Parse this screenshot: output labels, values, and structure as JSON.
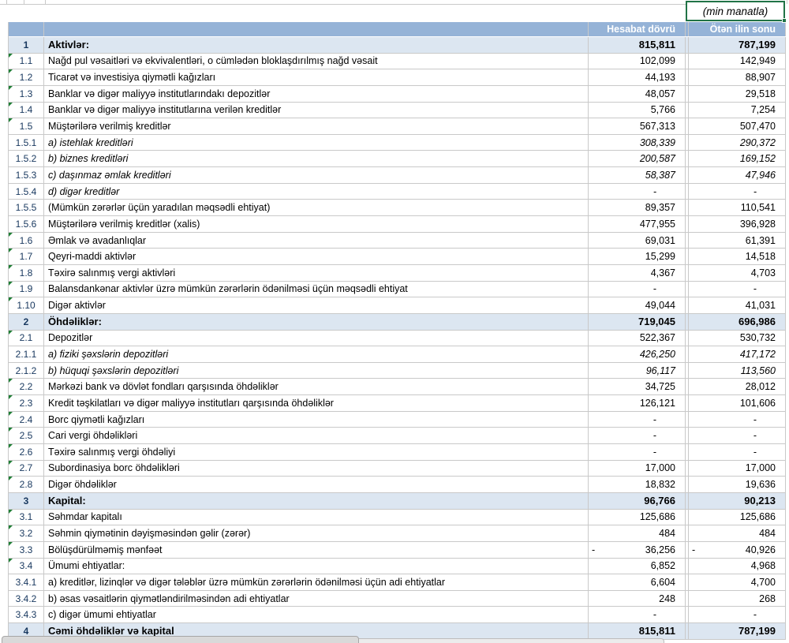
{
  "sheet": {
    "unit_note": "(min manatla)",
    "columns": [
      "Hesabat dövrü",
      "Ötən ilin sonu"
    ],
    "rows": [
      {
        "num": "1",
        "label": "Aktivlər:",
        "v1": "815,811",
        "v2": "787,199",
        "kind": "section",
        "flag": false
      },
      {
        "num": "1.1",
        "label": "Nağd pul vəsaitləri və  ekvivalentləri, o cümlədən bloklaşdırılmış nağd vəsait",
        "v1": "102,099",
        "v2": "142,949",
        "kind": "normal",
        "flag": true
      },
      {
        "num": "1.2",
        "label": "Ticarət və investisiya qiymətli kağızları",
        "v1": "44,193",
        "v2": "88,907",
        "kind": "normal",
        "flag": true
      },
      {
        "num": "1.3",
        "label": "Banklar və digər maliyyə institutlarındakı depozitlər",
        "v1": "48,057",
        "v2": "29,518",
        "kind": "normal",
        "flag": true
      },
      {
        "num": "1.4",
        "label": "Banklar və digər maliyyə institutlarına verilən kreditlər",
        "v1": "5,766",
        "v2": "7,254",
        "kind": "normal",
        "flag": true
      },
      {
        "num": "1.5",
        "label": "Müştərilərə verilmiş kreditlər",
        "v1": "567,313",
        "v2": "507,470",
        "kind": "normal",
        "flag": true
      },
      {
        "num": "1.5.1",
        "label": "a) istehlak kreditləri",
        "v1": "308,339",
        "v2": "290,372",
        "kind": "italic",
        "flag": false
      },
      {
        "num": "1.5.2",
        "label": "b) biznes kreditləri",
        "v1": "200,587",
        "v2": "169,152",
        "kind": "italic",
        "flag": false
      },
      {
        "num": "1.5.3",
        "label": "c) daşınmaz əmlak kreditləri",
        "v1": "58,387",
        "v2": "47,946",
        "kind": "italic",
        "flag": false
      },
      {
        "num": "1.5.4",
        "label": "d) digər kreditlər",
        "v1": "-",
        "v2": "-",
        "kind": "italic",
        "flag": false
      },
      {
        "num": "1.5.5",
        "label": "(Mümkün zərərlər üçün yaradılan məqsədli ehtiyat)",
        "v1": "89,357",
        "v2": "110,541",
        "kind": "normal",
        "flag": false
      },
      {
        "num": "1.5.6",
        "label": "Müştərilərə verilmiş kreditlər (xalis)",
        "v1": "477,955",
        "v2": "396,928",
        "kind": "normal",
        "flag": false
      },
      {
        "num": "1.6",
        "label": "Əmlak və avadanlıqlar",
        "v1": "69,031",
        "v2": "61,391",
        "kind": "normal",
        "flag": true
      },
      {
        "num": "1.7",
        "label": "Qeyri-maddi aktivlər",
        "v1": "15,299",
        "v2": "14,518",
        "kind": "normal",
        "flag": true
      },
      {
        "num": "1.8",
        "label": "Təxirə salınmış vergi aktivləri",
        "v1": "4,367",
        "v2": "4,703",
        "kind": "normal",
        "flag": true
      },
      {
        "num": "1.9",
        "label": "Balansdankənar aktivlər üzrə mümkün zərərlərin ödənilməsi üçün məqsədli ehtiyat",
        "v1": "-",
        "v2": "-",
        "kind": "normal",
        "flag": true
      },
      {
        "num": "1.10",
        "label": "Digər aktivlər",
        "v1": "49,044",
        "v2": "41,031",
        "kind": "normal",
        "flag": true
      },
      {
        "num": "2",
        "label": "Öhdəliklər:",
        "v1": "719,045",
        "v2": "696,986",
        "kind": "section",
        "flag": false
      },
      {
        "num": "2.1",
        "label": "Depozitlər",
        "v1": "522,367",
        "v2": "530,732",
        "kind": "normal",
        "flag": true
      },
      {
        "num": "2.1.1",
        "label": "a) fiziki şəxslərin depozitləri",
        "v1": "426,250",
        "v2": "417,172",
        "kind": "italic",
        "flag": false
      },
      {
        "num": "2.1.2",
        "label": "b) hüquqi şəxslərin depozitləri",
        "v1": "96,117",
        "v2": "113,560",
        "kind": "italic",
        "flag": false
      },
      {
        "num": "2.2",
        "label": "Mərkəzi bank və dövlət fondları qarşısında öhdəliklər",
        "v1": "34,725",
        "v2": "28,012",
        "kind": "normal",
        "flag": true
      },
      {
        "num": "2.3",
        "label": "Kredit təşkilatları və digər maliyyə institutları qarşısında öhdəliklər",
        "v1": "126,121",
        "v2": "101,606",
        "kind": "normal",
        "flag": true
      },
      {
        "num": "2.4",
        "label": "Borc qiymətli kağızları",
        "v1": "-",
        "v2": "-",
        "kind": "normal",
        "flag": true
      },
      {
        "num": "2.5",
        "label": "Cari vergi öhdəlikləri",
        "v1": "-",
        "v2": "-",
        "kind": "normal",
        "flag": true
      },
      {
        "num": "2.6",
        "label": "Təxirə salınmış vergi öhdəliyi",
        "v1": "-",
        "v2": "-",
        "kind": "normal",
        "flag": true
      },
      {
        "num": "2.7",
        "label": "Subordinasiya borc öhdəlikləri",
        "v1": "17,000",
        "v2": "17,000",
        "kind": "normal",
        "flag": true
      },
      {
        "num": "2.8",
        "label": "Digər öhdəliklər",
        "v1": "18,832",
        "v2": "19,636",
        "kind": "normal",
        "flag": true
      },
      {
        "num": "3",
        "label": "Kapital:",
        "v1": "96,766",
        "v2": "90,213",
        "kind": "section",
        "flag": false
      },
      {
        "num": "3.1",
        "label": "Səhmdar kapitalı",
        "v1": "125,686",
        "v2": "125,686",
        "kind": "normal",
        "flag": true
      },
      {
        "num": "3.2",
        "label": "Səhmin qiymətinin dəyişməsindən gəlir (zərər)",
        "v1": "484",
        "v2": "484",
        "kind": "normal",
        "flag": true
      },
      {
        "num": "3.3",
        "label": "Bölüşdürülməmiş mənfəət",
        "v1": "36,256",
        "v2": "40,926",
        "kind": "normal",
        "flag": true,
        "neg1": true,
        "neg2": true
      },
      {
        "num": "3.4",
        "label": "Ümumi ehtiyatlar:",
        "v1": "6,852",
        "v2": "4,968",
        "kind": "normal",
        "flag": true
      },
      {
        "num": "3.4.1",
        "label": "a) kreditlər, lizinqlər və digər tələblər üzrə mümkün zərərlərin ödənilməsi üçün adi ehtiyatlar",
        "v1": "6,604",
        "v2": "4,700",
        "kind": "normal",
        "flag": false
      },
      {
        "num": "3.4.2",
        "label": "b) əsas vəsaitlərin qiymətləndirilməsindən adi ehtiyatlar",
        "v1": "248",
        "v2": "268",
        "kind": "normal",
        "flag": false
      },
      {
        "num": "3.4.3",
        "label": "c) digər ümumi ehtiyatlar",
        "v1": "-",
        "v2": "-",
        "kind": "normal",
        "flag": false
      },
      {
        "num": "4",
        "label": "Cəmi öhdəliklər və kapital",
        "v1": "815,811",
        "v2": "787,199",
        "kind": "section",
        "flag": false
      }
    ],
    "negative_sign": "-"
  },
  "colors": {
    "header_bg": "#95b3d7",
    "section_bg": "#dce6f1",
    "selection_green": "#217346",
    "flag_green": "#1e7e34",
    "grid": "#c9c9c9"
  }
}
